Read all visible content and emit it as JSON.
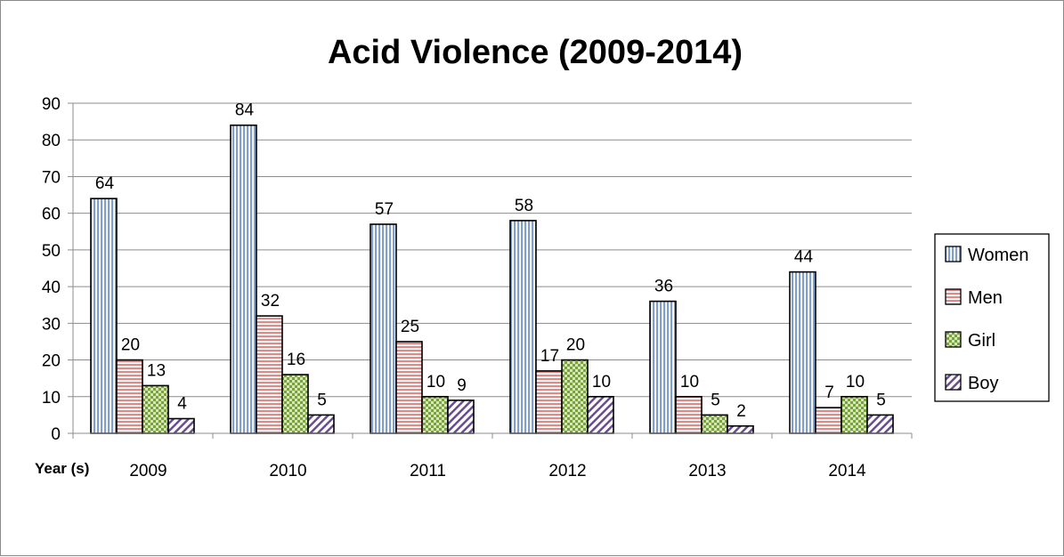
{
  "chart_data": {
    "type": "bar",
    "title": "Acid Violence (2009-2014)",
    "xlabel": "Year (s)",
    "ylabel": "",
    "categories": [
      "2009",
      "2010",
      "2011",
      "2012",
      "2013",
      "2014"
    ],
    "ylim": [
      0,
      90
    ],
    "yticks": [
      "0",
      "10",
      "20",
      "30",
      "40",
      "50",
      "60",
      "70",
      "80",
      "90"
    ],
    "grid": true,
    "legend_position": "right",
    "series": [
      {
        "name": "Women",
        "values": [
          64,
          84,
          57,
          58,
          36,
          44
        ],
        "color": "#95b3d7",
        "pattern": "vertical-lines"
      },
      {
        "name": "Men",
        "values": [
          20,
          32,
          25,
          17,
          10,
          7
        ],
        "color": "#e6b9b8",
        "pattern": "horizontal-lines"
      },
      {
        "name": "Girl",
        "values": [
          13,
          16,
          10,
          20,
          5,
          10
        ],
        "color": "#9bbb59",
        "pattern": "checker"
      },
      {
        "name": "Boy",
        "values": [
          4,
          5,
          9,
          10,
          2,
          5
        ],
        "color": "#8064a2",
        "pattern": "diagonal-lines"
      }
    ]
  }
}
